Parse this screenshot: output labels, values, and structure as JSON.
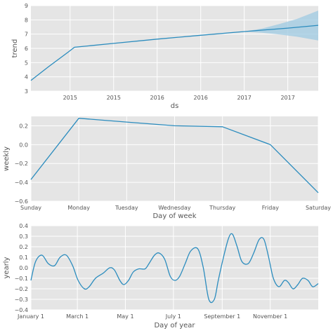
{
  "colors": {
    "panel_background": "#e5e5e5",
    "grid": "#ffffff",
    "line": "#2b8cbe",
    "band": "#9ecae1",
    "text": "#555555"
  },
  "chart_data": [
    {
      "type": "line",
      "title": "",
      "xlabel": "ds",
      "ylabel": "trend",
      "grid": true,
      "xlim": [
        2014.55,
        2017.85
      ],
      "ylim": [
        3,
        9
      ],
      "x_ticks": [
        {
          "x": 2015.0,
          "label": "2015"
        },
        {
          "x": 2015.5,
          "label": "2015"
        },
        {
          "x": 2016.0,
          "label": "2016"
        },
        {
          "x": 2016.5,
          "label": "2016"
        },
        {
          "x": 2017.0,
          "label": "2017"
        },
        {
          "x": 2017.5,
          "label": "2017"
        }
      ],
      "y_ticks": [
        3,
        4,
        5,
        6,
        7,
        8,
        9
      ],
      "series": [
        {
          "x": [
            2014.55,
            2014.75,
            2014.98,
            2015.05,
            2015.5,
            2016.0,
            2016.5,
            2017.0,
            2017.5,
            2017.85
          ],
          "y": [
            3.75,
            4.7,
            5.75,
            6.08,
            6.35,
            6.65,
            6.92,
            7.18,
            7.42,
            7.62
          ]
        }
      ],
      "uncertainty": {
        "x": [
          2017.0,
          2017.2,
          2017.4,
          2017.6,
          2017.85
        ],
        "lower": [
          7.18,
          7.1,
          6.98,
          6.82,
          6.55
        ],
        "upper": [
          7.18,
          7.38,
          7.7,
          8.05,
          8.65
        ]
      }
    },
    {
      "type": "line",
      "title": "",
      "xlabel": "Day of week",
      "ylabel": "weekly",
      "grid": true,
      "ylim": [
        -0.6,
        0.3
      ],
      "categories": [
        "Sunday",
        "Monday",
        "Tuesday",
        "Wednesday",
        "Thursday",
        "Friday",
        "Saturday"
      ],
      "y_ticks": [
        -0.6,
        -0.4,
        -0.2,
        0.0,
        0.2
      ],
      "y_tick_labels": [
        "−0.6",
        "−0.4",
        "−0.2",
        "0.0",
        "0.2"
      ],
      "series": [
        {
          "values": [
            -0.37,
            0.28,
            0.24,
            0.2,
            0.19,
            0.0,
            -0.51
          ]
        }
      ]
    },
    {
      "type": "line",
      "title": "",
      "xlabel": "Day of year",
      "ylabel": "yearly",
      "grid": true,
      "xlim": [
        0,
        365
      ],
      "ylim": [
        -0.4,
        0.4
      ],
      "x_ticks": [
        {
          "x": 0,
          "label": "January 1"
        },
        {
          "x": 59,
          "label": "March 1"
        },
        {
          "x": 120,
          "label": "May 1"
        },
        {
          "x": 181,
          "label": "July 1"
        },
        {
          "x": 243,
          "label": "September 1"
        },
        {
          "x": 304,
          "label": "November 1"
        }
      ],
      "y_ticks": [
        -0.4,
        -0.3,
        -0.2,
        -0.1,
        0.0,
        0.1,
        0.2,
        0.3,
        0.4
      ],
      "y_tick_labels": [
        "−0.4",
        "−0.3",
        "−0.2",
        "−0.1",
        "0.0",
        "0.1",
        "0.2",
        "0.3",
        "0.4"
      ],
      "series": [
        {
          "x": [
            0,
            6,
            14,
            22,
            30,
            37,
            45,
            53,
            60,
            68,
            74,
            82,
            92,
            100,
            106,
            113,
            118,
            124,
            130,
            137,
            145,
            150,
            157,
            163,
            170,
            177,
            183,
            189,
            196,
            203,
            212,
            219,
            226,
            233,
            238,
            244,
            251,
            256,
            262,
            268,
            276,
            283,
            290,
            296,
            302,
            308,
            315,
            322,
            327,
            333,
            339,
            345,
            352,
            358,
            365
          ],
          "y": [
            -0.12,
            0.06,
            0.12,
            0.04,
            0.02,
            0.1,
            0.12,
            0.02,
            -0.12,
            -0.2,
            -0.18,
            -0.1,
            -0.05,
            0.0,
            -0.02,
            -0.12,
            -0.16,
            -0.12,
            -0.04,
            -0.01,
            -0.01,
            0.04,
            0.12,
            0.14,
            0.08,
            -0.08,
            -0.12,
            -0.08,
            0.04,
            0.16,
            0.18,
            0.0,
            -0.3,
            -0.3,
            -0.12,
            0.08,
            0.28,
            0.32,
            0.2,
            0.06,
            0.04,
            0.14,
            0.27,
            0.27,
            0.1,
            -0.1,
            -0.18,
            -0.12,
            -0.14,
            -0.2,
            -0.16,
            -0.1,
            -0.12,
            -0.18,
            -0.15
          ]
        }
      ]
    }
  ]
}
